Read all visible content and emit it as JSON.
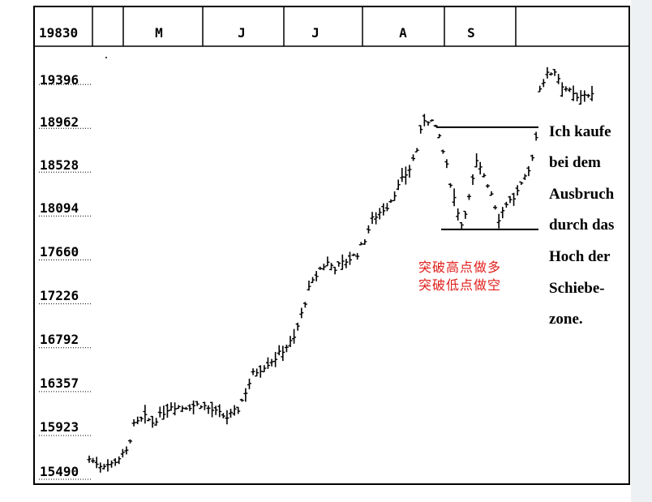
{
  "chart_data": {
    "type": "bar",
    "subtype": "ohlc",
    "title": "",
    "xlabel": "",
    "ylabel": "",
    "y_tick_labels": [
      "19830",
      "19396",
      "18962",
      "18528",
      "18094",
      "17660",
      "17226",
      "16792",
      "16357",
      "15923",
      "15490"
    ],
    "y_ticks": [
      19830,
      19396,
      18962,
      18528,
      18094,
      17660,
      17226,
      16792,
      16357,
      15923,
      15490
    ],
    "ylim": [
      15490,
      19830
    ],
    "months": [
      "M",
      "J",
      "J",
      "A",
      "S"
    ],
    "grid": false,
    "breakout_resistance": 18900,
    "consolidation_support": 17890,
    "annotation_de": [
      "Ich kaufe",
      "bei dem",
      "Ausbruch",
      "durch das",
      "Hoch der",
      "Schiebe-",
      "zone."
    ],
    "annotation_cn": [
      "突破高点做多",
      "突破低点做空"
    ],
    "anchors": [
      [
        0,
        15620
      ],
      [
        3,
        15560
      ],
      [
        6,
        15570
      ],
      [
        10,
        15690
      ],
      [
        12,
        15950
      ],
      [
        15,
        16030
      ],
      [
        17,
        15980
      ],
      [
        22,
        16150
      ],
      [
        25,
        16130
      ],
      [
        30,
        16160
      ],
      [
        34,
        16080
      ],
      [
        37,
        16030
      ],
      [
        40,
        16110
      ],
      [
        44,
        16460
      ],
      [
        50,
        16620
      ],
      [
        55,
        16810
      ],
      [
        57,
        17050
      ],
      [
        59,
        17300
      ],
      [
        62,
        17500
      ],
      [
        64,
        17560
      ],
      [
        66,
        17510
      ],
      [
        70,
        17600
      ],
      [
        72,
        17650
      ],
      [
        74,
        17790
      ],
      [
        76,
        17990
      ],
      [
        78,
        18060
      ],
      [
        80,
        18120
      ],
      [
        82,
        18250
      ],
      [
        84,
        18380
      ],
      [
        86,
        18490
      ],
      [
        88,
        18680
      ],
      [
        89,
        18850
      ],
      [
        90,
        18980
      ],
      [
        92,
        18960
      ],
      [
        94,
        18810
      ],
      [
        96,
        18510
      ],
      [
        98,
        18200
      ],
      [
        100,
        17940
      ],
      [
        102,
        18200
      ],
      [
        104,
        18550
      ],
      [
        106,
        18430
      ],
      [
        108,
        18250
      ],
      [
        110,
        18000
      ],
      [
        112,
        18150
      ],
      [
        114,
        18200
      ],
      [
        116,
        18320
      ],
      [
        118,
        18460
      ],
      [
        119,
        18620
      ],
      [
        120,
        18800
      ],
      [
        121,
        19300
      ],
      [
        123,
        19420
      ],
      [
        125,
        19460
      ],
      [
        127,
        19320
      ],
      [
        129,
        19250
      ],
      [
        131,
        19180
      ],
      [
        133,
        19230
      ],
      [
        135,
        19220
      ]
    ]
  }
}
